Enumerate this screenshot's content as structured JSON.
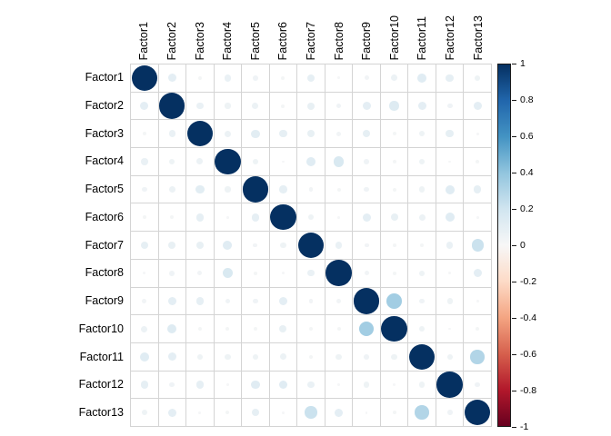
{
  "chart_data": {
    "type": "heatmap",
    "subtype": "correlation-matrix-circles",
    "title": "",
    "categories": [
      "Factor1",
      "Factor2",
      "Factor3",
      "Factor4",
      "Factor5",
      "Factor6",
      "Factor7",
      "Factor8",
      "Factor9",
      "Factor10",
      "Factor11",
      "Factor12",
      "Factor13"
    ],
    "matrix": [
      [
        1.0,
        0.1,
        0.02,
        0.07,
        0.04,
        0.02,
        0.09,
        0.01,
        0.03,
        0.06,
        0.12,
        0.09,
        0.05
      ],
      [
        0.1,
        1.0,
        0.07,
        0.05,
        0.06,
        0.02,
        0.08,
        0.04,
        0.1,
        0.13,
        0.1,
        0.04,
        0.1
      ],
      [
        0.02,
        0.07,
        1.0,
        0.06,
        0.11,
        0.09,
        0.08,
        0.03,
        0.09,
        0.02,
        0.05,
        0.09,
        0.01
      ],
      [
        0.07,
        0.05,
        0.06,
        1.0,
        0.05,
        0.01,
        0.12,
        0.16,
        0.04,
        0.02,
        0.05,
        0.01,
        0.02
      ],
      [
        0.04,
        0.06,
        0.11,
        0.05,
        1.0,
        0.09,
        0.03,
        0.02,
        0.04,
        0.02,
        0.05,
        0.12,
        0.09
      ],
      [
        0.02,
        0.02,
        0.09,
        0.01,
        0.09,
        1.0,
        0.05,
        0.01,
        0.1,
        0.08,
        0.06,
        0.12,
        0.01
      ],
      [
        0.09,
        0.08,
        0.08,
        0.12,
        0.03,
        0.05,
        1.0,
        0.07,
        0.03,
        0.02,
        0.02,
        0.07,
        0.22
      ],
      [
        0.01,
        0.04,
        0.03,
        0.16,
        0.02,
        0.01,
        0.07,
        1.0,
        0.03,
        0.02,
        0.05,
        0.01,
        0.1
      ],
      [
        0.03,
        0.1,
        0.09,
        0.04,
        0.04,
        0.1,
        0.03,
        0.03,
        1.0,
        0.35,
        0.04,
        0.05,
        0.01
      ],
      [
        0.06,
        0.13,
        0.02,
        0.02,
        0.02,
        0.08,
        0.02,
        0.02,
        0.35,
        1.0,
        0.05,
        0.01,
        0.02
      ],
      [
        0.12,
        0.1,
        0.05,
        0.05,
        0.05,
        0.06,
        0.02,
        0.05,
        0.04,
        0.05,
        1.0,
        0.05,
        0.3
      ],
      [
        0.09,
        0.04,
        0.09,
        0.01,
        0.12,
        0.12,
        0.07,
        0.01,
        0.05,
        0.01,
        0.05,
        1.0,
        0.04
      ],
      [
        0.05,
        0.1,
        0.01,
        0.02,
        0.09,
        0.01,
        0.22,
        0.1,
        0.01,
        0.02,
        0.3,
        0.04,
        1.0
      ]
    ],
    "value_range": [
      -1,
      1
    ],
    "legend": {
      "position": "right",
      "tick_labels": [
        "1",
        "0.8",
        "0.6",
        "0.4",
        "0.2",
        "0",
        "-0.2",
        "-0.4",
        "-0.6",
        "-0.8",
        "-1"
      ],
      "tick_values": [
        1,
        0.8,
        0.6,
        0.4,
        0.2,
        0,
        -0.2,
        -0.4,
        -0.6,
        -0.8,
        -1
      ]
    },
    "palette": {
      "name": "RdBu (blue = positive, red = negative)",
      "stops": [
        {
          "v": -1.0,
          "c": "#67001F"
        },
        {
          "v": -0.8,
          "c": "#B2182B"
        },
        {
          "v": -0.6,
          "c": "#D6604D"
        },
        {
          "v": -0.4,
          "c": "#F4A582"
        },
        {
          "v": -0.2,
          "c": "#FDDBC7"
        },
        {
          "v": 0.0,
          "c": "#F7F7F7"
        },
        {
          "v": 0.2,
          "c": "#D1E5F0"
        },
        {
          "v": 0.4,
          "c": "#92C5DE"
        },
        {
          "v": 0.6,
          "c": "#4393C3"
        },
        {
          "v": 0.8,
          "c": "#2166AC"
        },
        {
          "v": 1.0,
          "c": "#053061"
        }
      ]
    },
    "grid_line_color": "#d4d4d4",
    "diagonal_color": "#053061",
    "label_color": "#000000",
    "background": "#ffffff",
    "grid": "on"
  }
}
